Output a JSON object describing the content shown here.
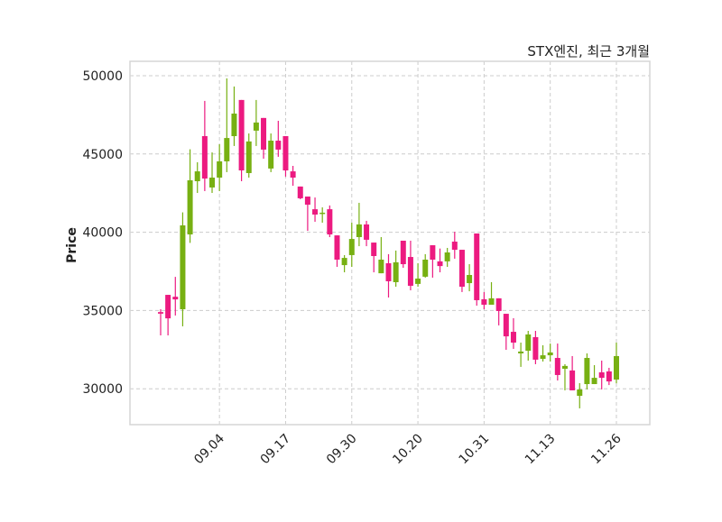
{
  "chart_data": {
    "type": "candlestick",
    "title": "STX엔진, 최근 3개월",
    "xlabel": "",
    "ylabel": "Price",
    "ylim": [
      27710,
      50920
    ],
    "yticks": [
      30000,
      35000,
      40000,
      45000,
      50000
    ],
    "xticks": [
      {
        "index": 8,
        "label": "09.04"
      },
      {
        "index": 17,
        "label": "09.17"
      },
      {
        "index": 26,
        "label": "09.30"
      },
      {
        "index": 35,
        "label": "10.20"
      },
      {
        "index": 44,
        "label": "10.31"
      },
      {
        "index": 53,
        "label": "11.13"
      },
      {
        "index": 62,
        "label": "11.26"
      }
    ],
    "grid": true,
    "colors": {
      "up": "#77b012",
      "down": "#ec1a80",
      "grid": "#cccccc",
      "frame": "#d6d6d6"
    },
    "ohlc": [
      [
        34900,
        35080,
        33410,
        34800
      ],
      [
        36000,
        36000,
        33410,
        34500
      ],
      [
        35880,
        37150,
        34680,
        35710
      ],
      [
        35080,
        41270,
        33990,
        40440
      ],
      [
        39860,
        45300,
        39320,
        43320
      ],
      [
        43260,
        44470,
        42510,
        43890
      ],
      [
        46140,
        48390,
        42630,
        43430
      ],
      [
        42860,
        45100,
        42510,
        43490
      ],
      [
        43490,
        45620,
        42630,
        44530
      ],
      [
        44530,
        49830,
        43840,
        46020
      ],
      [
        46140,
        49310,
        45510,
        47580
      ],
      [
        48450,
        48450,
        43260,
        43950
      ],
      [
        43780,
        46310,
        43490,
        45800
      ],
      [
        46490,
        48450,
        45510,
        47010
      ],
      [
        47300,
        47300,
        44700,
        45280
      ],
      [
        44070,
        46310,
        43840,
        45850
      ],
      [
        45850,
        47120,
        44820,
        45280
      ],
      [
        46140,
        46140,
        43550,
        43950
      ],
      [
        43890,
        44240,
        42970,
        43490
      ],
      [
        42920,
        42920,
        42110,
        42170
      ],
      [
        42280,
        42280,
        40090,
        41760
      ],
      [
        41470,
        42220,
        40670,
        41130
      ],
      [
        41190,
        41590,
        40610,
        41250
      ],
      [
        41470,
        41710,
        39690,
        39860
      ],
      [
        39800,
        39800,
        37790,
        38250
      ],
      [
        37900,
        38540,
        37440,
        38360
      ],
      [
        38540,
        40610,
        37790,
        39570
      ],
      [
        39690,
        41880,
        39110,
        40500
      ],
      [
        40500,
        40730,
        39110,
        39520
      ],
      [
        39340,
        39340,
        37440,
        38480
      ],
      [
        37380,
        39690,
        37380,
        38250
      ],
      [
        38020,
        38600,
        35830,
        36870
      ],
      [
        36810,
        38830,
        36520,
        38080
      ],
      [
        39460,
        39460,
        37730,
        37960
      ],
      [
        38420,
        39460,
        36290,
        36580
      ],
      [
        36700,
        38020,
        36520,
        37040
      ],
      [
        37160,
        38600,
        37100,
        38250
      ],
      [
        39170,
        39170,
        37100,
        38250
      ],
      [
        38140,
        38960,
        37440,
        37840
      ],
      [
        38140,
        39000,
        37790,
        38710
      ],
      [
        39400,
        40030,
        38310,
        38880
      ],
      [
        38880,
        38880,
        36180,
        36520
      ],
      [
        36750,
        37960,
        36230,
        37270
      ],
      [
        39920,
        39920,
        35310,
        35660
      ],
      [
        35720,
        36180,
        35080,
        35370
      ],
      [
        35370,
        36810,
        35370,
        35780
      ],
      [
        35780,
        35780,
        34050,
        34970
      ],
      [
        34790,
        34790,
        32490,
        33350
      ],
      [
        33640,
        34510,
        32550,
        32950
      ],
      [
        32260,
        32950,
        31400,
        32380
      ],
      [
        32430,
        33700,
        31800,
        33470
      ],
      [
        33300,
        33700,
        31570,
        31860
      ],
      [
        31910,
        32780,
        31740,
        32140
      ],
      [
        32140,
        32890,
        31740,
        32320
      ],
      [
        31970,
        32890,
        30530,
        30880
      ],
      [
        31280,
        31570,
        29900,
        31460
      ],
      [
        31170,
        32090,
        29900,
        29900
      ],
      [
        29550,
        30360,
        28750,
        29960
      ],
      [
        30300,
        32260,
        29960,
        31970
      ],
      [
        30300,
        31510,
        30300,
        30700
      ],
      [
        31050,
        31800,
        29960,
        30700
      ],
      [
        31110,
        31340,
        30240,
        30470
      ],
      [
        30590,
        32950,
        30350,
        32090
      ]
    ]
  }
}
